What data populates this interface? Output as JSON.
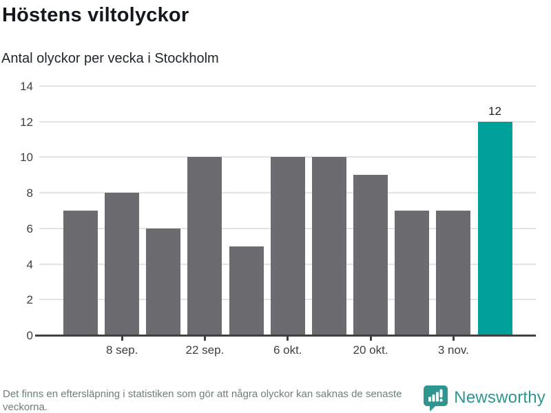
{
  "header": {
    "title": "Höstens viltolyckor",
    "subtitle": "Antal olyckor per vecka i Stockholm"
  },
  "chart_data": {
    "type": "bar",
    "title": "Höstens viltolyckor",
    "subtitle": "Antal olyckor per vecka i Stockholm",
    "values": [
      7,
      8,
      6,
      10,
      5,
      10,
      10,
      9,
      7,
      7,
      12
    ],
    "highlight_index": 10,
    "bar_color": "#6b6b70",
    "highlight_color": "#00a09a",
    "value_labels": [
      {
        "index": 10,
        "text": "12"
      }
    ],
    "y_ticks": [
      0,
      2,
      4,
      6,
      8,
      10,
      12,
      14
    ],
    "ylim": [
      0,
      14
    ],
    "x_tick_labels": [
      {
        "index": 1,
        "label": "8 sep."
      },
      {
        "index": 3,
        "label": "22 sep."
      },
      {
        "index": 5,
        "label": "6 okt."
      },
      {
        "index": 7,
        "label": "20 okt."
      },
      {
        "index": 9,
        "label": "3 nov."
      }
    ],
    "grid": "horizontal",
    "gridline_color": "#e4e4e4",
    "axis_color": "#404040",
    "legend": "none"
  },
  "footer": {
    "note": "Det finns en eftersläpning i statistiken som gör att några olyckor kan saknas de senaste veckorna.",
    "brand": "Newsworthy",
    "brand_color": "#2f968f",
    "logo_icon": "speech-bubble-bar-chart"
  }
}
